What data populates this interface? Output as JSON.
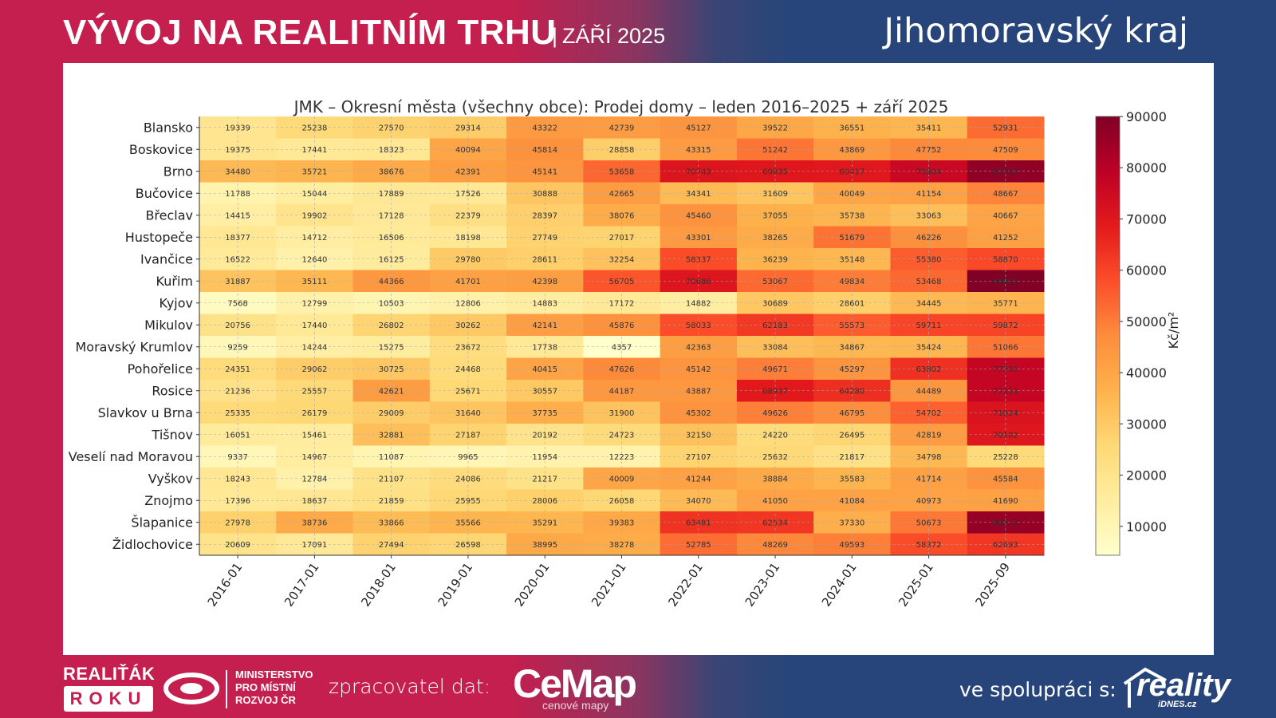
{
  "header": {
    "title": "VÝVOJ NA REALITNÍM TRHU",
    "separator": "|",
    "subtitle": "ZÁŘÍ 2025",
    "region": "Jihomoravský kraj"
  },
  "footer": {
    "award_line1": "REALIŤÁK",
    "award_line2": "ROKU",
    "ministry_line1": "MINISTERSTVO",
    "ministry_line2": "PRO MÍSTNÍ",
    "ministry_line3": "ROZVOJ ČR",
    "processor_label": "zpracovatel dat:",
    "processor_name": "CeMap",
    "processor_tagline": "cenové mapy",
    "partner_label": "ve spolupráci s:",
    "partner_name": "reality",
    "partner_domain": "iDNES.cz"
  },
  "colors": {
    "brand_red": "#c41f4e",
    "brand_blue": "#27457a"
  },
  "chart_data": {
    "type": "heatmap",
    "title": "JMK – Okresní města (všechny obce): Prodej domy – leden 2016–2025 + září 2025",
    "xlabel": "",
    "ylabel": "",
    "colorbar_label": "Kč/m²",
    "colormap": "YlOrRd",
    "color_range": [
      4357,
      90005
    ],
    "colorbar_ticks": [
      10000,
      20000,
      30000,
      40000,
      50000,
      60000,
      70000,
      80000,
      90000
    ],
    "x": [
      "2016-01",
      "2017-01",
      "2018-01",
      "2019-01",
      "2020-01",
      "2021-01",
      "2022-01",
      "2023-01",
      "2024-01",
      "2025-01",
      "2025-09"
    ],
    "y": [
      "Blansko",
      "Boskovice",
      "Brno",
      "Bučovice",
      "Břeclav",
      "Hustopeče",
      "Ivančice",
      "Kuřim",
      "Kyjov",
      "Mikulov",
      "Moravský Krumlov",
      "Pohořelice",
      "Rosice",
      "Slavkov u Brna",
      "Tišnov",
      "Veselí nad Moravou",
      "Vyškov",
      "Znojmo",
      "Šlapanice",
      "Židlochovice"
    ],
    "values": [
      [
        19339,
        25238,
        27570,
        29314,
        43322,
        42739,
        45127,
        39522,
        36551,
        35411,
        52931
      ],
      [
        19375,
        17441,
        18323,
        40094,
        45814,
        28858,
        43315,
        51242,
        43869,
        47752,
        47509
      ],
      [
        34480,
        35721,
        38676,
        42391,
        45141,
        53658,
        70743,
        69835,
        69417,
        75804,
        87165
      ],
      [
        11788,
        15044,
        17889,
        17526,
        30888,
        42665,
        34341,
        31609,
        40049,
        41154,
        48667
      ],
      [
        14415,
        19902,
        17128,
        22379,
        28397,
        38076,
        45460,
        37055,
        35738,
        33063,
        40667
      ],
      [
        18377,
        14712,
        16506,
        18198,
        27749,
        27017,
        43301,
        38265,
        51679,
        46226,
        41252
      ],
      [
        16522,
        12640,
        16125,
        29780,
        28611,
        32254,
        58337,
        36239,
        35148,
        55380,
        58870
      ],
      [
        31887,
        35111,
        44366,
        41701,
        42398,
        56705,
        70686,
        53067,
        49834,
        53468,
        90005
      ],
      [
        7568,
        12799,
        10503,
        12806,
        14883,
        17172,
        14882,
        30689,
        28601,
        34445,
        35771
      ],
      [
        20756,
        17440,
        26802,
        30262,
        42141,
        45876,
        58033,
        62183,
        55573,
        59711,
        59872
      ],
      [
        9259,
        14244,
        15275,
        23672,
        17738,
        4357,
        42363,
        33084,
        34867,
        35424,
        51066
      ],
      [
        24351,
        29062,
        30725,
        24468,
        40415,
        47626,
        45142,
        49671,
        45297,
        63802,
        77290
      ],
      [
        21236,
        25557,
        42621,
        25671,
        30557,
        44187,
        43887,
        68937,
        64280,
        44489,
        77123
      ],
      [
        25335,
        26179,
        29009,
        31640,
        37735,
        31900,
        45302,
        49626,
        46795,
        54702,
        71024
      ],
      [
        16051,
        15461,
        32881,
        27187,
        20192,
        24723,
        32150,
        24220,
        26495,
        42819,
        70102
      ],
      [
        9337,
        14967,
        11087,
        9965,
        11954,
        12223,
        27107,
        25632,
        21817,
        34798,
        25228
      ],
      [
        18243,
        12784,
        21107,
        24086,
        21217,
        40009,
        41244,
        38884,
        35583,
        41714,
        45584
      ],
      [
        17396,
        18637,
        21859,
        25955,
        28006,
        26058,
        34070,
        41050,
        41084,
        40973,
        41690
      ],
      [
        27978,
        38736,
        33866,
        35566,
        35291,
        39383,
        63481,
        62534,
        37330,
        50673,
        86216
      ],
      [
        20609,
        17091,
        27494,
        26598,
        38995,
        38278,
        52785,
        48269,
        49593,
        58372,
        62693
      ]
    ],
    "grid": true
  }
}
